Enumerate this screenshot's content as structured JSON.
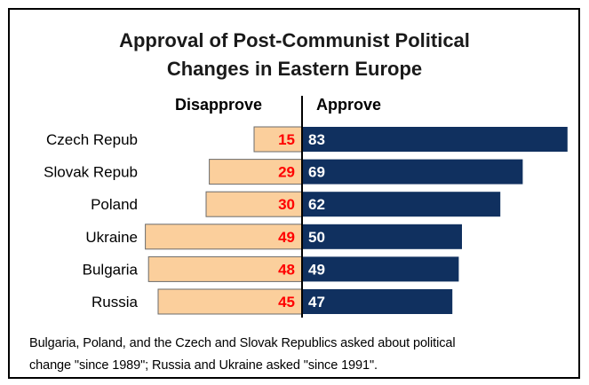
{
  "title_line1": "Approval of Post-Communist Political",
  "title_line2": "Changes in Eastern Europe",
  "header_disapprove": "Disapprove",
  "header_approve": "Approve",
  "footnote_line1": "Bulgaria, Poland, and the Czech and Slovak Republics asked about political",
  "footnote_line2": "change \"since 1989\"; Russia and Ukraine asked \"since 1991\".",
  "colors": {
    "disapprove_fill": "#fbcf9c",
    "approve_fill": "#10305f",
    "disapprove_label": "#ff0000",
    "approve_label": "#ffffff"
  },
  "chart_data": {
    "type": "bar",
    "orientation": "horizontal-diverging",
    "title": "Approval of Post-Communist Political Changes in Eastern Europe",
    "categories": [
      "Czech Repub",
      "Slovak Repub",
      "Poland",
      "Ukraine",
      "Bulgaria",
      "Russia"
    ],
    "series": [
      {
        "name": "Disapprove",
        "values": [
          15,
          29,
          30,
          49,
          48,
          45
        ]
      },
      {
        "name": "Approve",
        "values": [
          83,
          69,
          62,
          50,
          49,
          47
        ]
      }
    ],
    "grid": false,
    "legend": "column headers above bars"
  }
}
